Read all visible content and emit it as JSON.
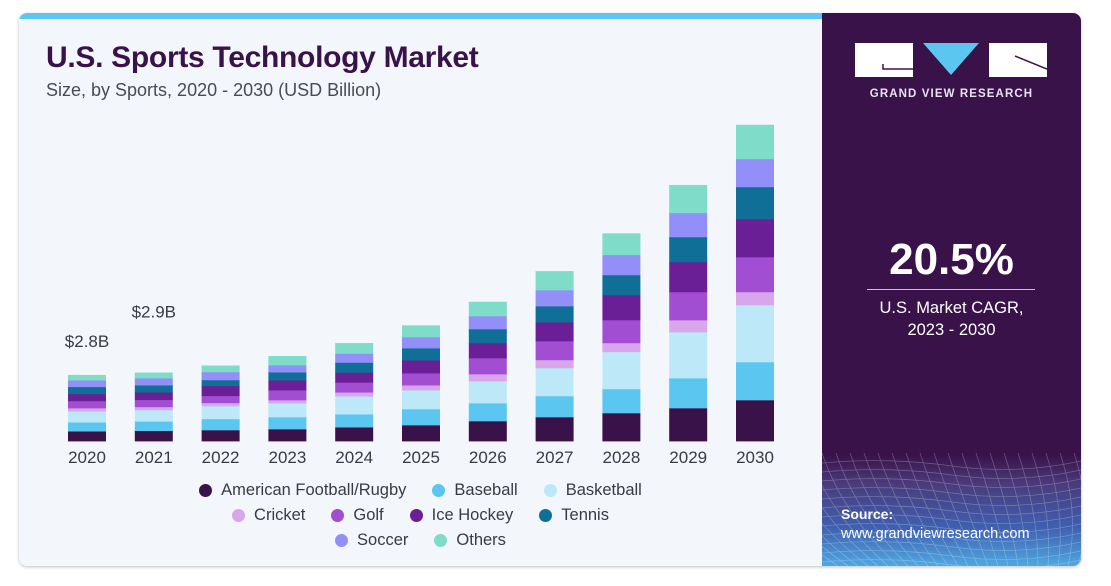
{
  "header": {
    "title": "U.S. Sports Technology Market",
    "subtitle": "Size, by Sports, 2020 - 2030 (USD Billion)"
  },
  "side_panel": {
    "brand": "GRAND VIEW RESEARCH",
    "cagr_value": "20.5%",
    "cagr_label_line1": "U.S. Market CAGR,",
    "cagr_label_line2": "2023 - 2030",
    "source_label": "Source:",
    "source_url": "www.grandviewresearch.com",
    "colors": {
      "panel": "#3a124a",
      "logo_accent": "#5bc7f0"
    }
  },
  "chart_data": {
    "type": "bar",
    "stacked": true,
    "title": "U.S. Sports Technology Market",
    "subtitle": "Size, by Sports, 2020 - 2030 (USD Billion)",
    "xlabel": "",
    "ylabel": "",
    "ylim": [
      0,
      14
    ],
    "grid": false,
    "legend_position": "bottom",
    "categories": [
      "2020",
      "2021",
      "2022",
      "2023",
      "2024",
      "2025",
      "2026",
      "2027",
      "2028",
      "2029",
      "2030"
    ],
    "annotations": [
      {
        "category": "2020",
        "text": "$2.8B"
      },
      {
        "category": "2021",
        "text": "$2.9B"
      }
    ],
    "series": [
      {
        "name": "American Football/Rugby",
        "color": "#3a124a",
        "values": [
          0.42,
          0.44,
          0.47,
          0.51,
          0.59,
          0.68,
          0.85,
          1.02,
          1.19,
          1.4,
          1.74
        ]
      },
      {
        "name": "Baseball",
        "color": "#5bc7f0",
        "values": [
          0.38,
          0.4,
          0.47,
          0.51,
          0.55,
          0.68,
          0.76,
          0.89,
          1.02,
          1.27,
          1.61
        ]
      },
      {
        "name": "Basketball",
        "color": "#bde8f8",
        "values": [
          0.47,
          0.48,
          0.55,
          0.59,
          0.76,
          0.8,
          0.93,
          1.19,
          1.57,
          1.95,
          2.42
        ]
      },
      {
        "name": "Cricket",
        "color": "#d8a6ea",
        "values": [
          0.13,
          0.13,
          0.13,
          0.13,
          0.17,
          0.21,
          0.3,
          0.34,
          0.38,
          0.51,
          0.55
        ]
      },
      {
        "name": "Golf",
        "color": "#a24ed2",
        "values": [
          0.3,
          0.3,
          0.3,
          0.42,
          0.42,
          0.51,
          0.68,
          0.8,
          0.97,
          1.19,
          1.48
        ]
      },
      {
        "name": "Ice Hockey",
        "color": "#6a1f96",
        "values": [
          0.3,
          0.32,
          0.42,
          0.42,
          0.42,
          0.55,
          0.64,
          0.8,
          1.06,
          1.27,
          1.61
        ]
      },
      {
        "name": "Tennis",
        "color": "#0f6f96",
        "values": [
          0.3,
          0.3,
          0.25,
          0.34,
          0.42,
          0.51,
          0.59,
          0.68,
          0.85,
          1.06,
          1.36
        ]
      },
      {
        "name": "Soccer",
        "color": "#9290f8",
        "values": [
          0.28,
          0.3,
          0.34,
          0.3,
          0.38,
          0.47,
          0.55,
          0.68,
          0.85,
          1.02,
          1.19
        ]
      },
      {
        "name": "Others",
        "color": "#7edcc8",
        "values": [
          0.22,
          0.23,
          0.27,
          0.38,
          0.44,
          0.49,
          0.6,
          0.8,
          0.91,
          1.18,
          1.44
        ]
      }
    ]
  },
  "legend": {
    "rows": [
      [
        0,
        1,
        2
      ],
      [
        3,
        4,
        5,
        6
      ],
      [
        7,
        8
      ]
    ]
  }
}
